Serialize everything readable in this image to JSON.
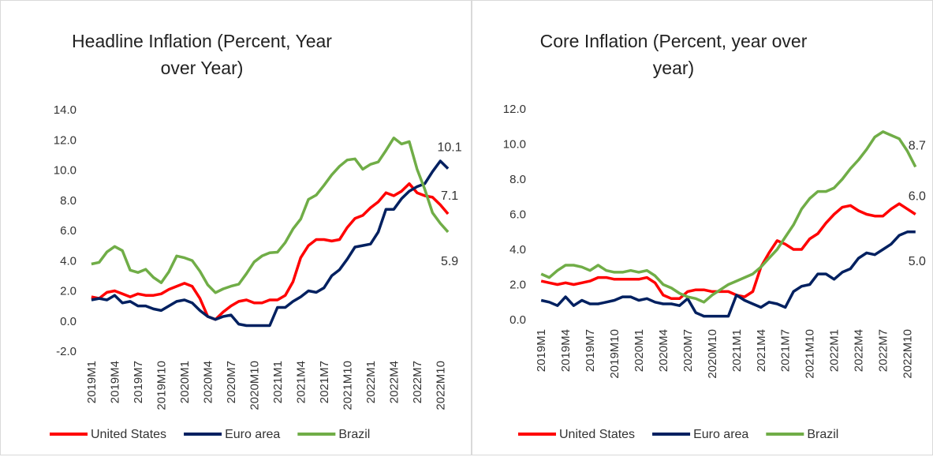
{
  "chart_data": [
    {
      "type": "line",
      "title": "Headline Inflation (Percent, Year over Year)",
      "categories": [
        "2019M1",
        null,
        null,
        "2019M4",
        null,
        null,
        "2019M7",
        null,
        null,
        "2019M10",
        null,
        null,
        "2020M1",
        null,
        null,
        "2020M4",
        null,
        null,
        "2020M7",
        null,
        null,
        "2020M10",
        null,
        null,
        "2021M1",
        null,
        null,
        "2021M4",
        null,
        null,
        "2021M7",
        null,
        null,
        "2021M10",
        null,
        null,
        "2022M1",
        null,
        null,
        "2022M4",
        null,
        null,
        "2022M7",
        null,
        null,
        "2022M10",
        null
      ],
      "ylim": [
        -2,
        14
      ],
      "yticks": [
        {
          "value": -2,
          "label": "-2.0"
        },
        {
          "value": 0,
          "label": "0.0"
        },
        {
          "value": 2,
          "label": "2.0"
        },
        {
          "value": 4,
          "label": "4.0"
        },
        {
          "value": 6,
          "label": "6.0"
        },
        {
          "value": 8,
          "label": "8.0"
        },
        {
          "value": 10,
          "label": "10.0"
        },
        {
          "value": 12,
          "label": "12.0"
        },
        {
          "value": 14,
          "label": "14.0"
        }
      ],
      "series": [
        {
          "name": "United States",
          "color": "#ff0000",
          "end_label": "7.1",
          "values": [
            1.6,
            1.5,
            1.9,
            2.0,
            1.8,
            1.6,
            1.8,
            1.7,
            1.7,
            1.8,
            2.1,
            2.3,
            2.5,
            2.3,
            1.5,
            0.3,
            0.1,
            0.6,
            1.0,
            1.3,
            1.4,
            1.2,
            1.2,
            1.4,
            1.4,
            1.7,
            2.6,
            4.2,
            5.0,
            5.4,
            5.4,
            5.3,
            5.4,
            6.2,
            6.8,
            7.0,
            7.5,
            7.9,
            8.5,
            8.3,
            8.6,
            9.1,
            8.5,
            8.3,
            8.2,
            7.7,
            7.1
          ]
        },
        {
          "name": "Euro area",
          "color": "#002060",
          "end_label": "10.1",
          "values": [
            1.4,
            1.5,
            1.4,
            1.7,
            1.2,
            1.3,
            1.0,
            1.0,
            0.8,
            0.7,
            1.0,
            1.3,
            1.4,
            1.2,
            0.7,
            0.3,
            0.1,
            0.3,
            0.4,
            -0.2,
            -0.3,
            -0.3,
            -0.3,
            -0.3,
            0.9,
            0.9,
            1.3,
            1.6,
            2.0,
            1.9,
            2.2,
            3.0,
            3.4,
            4.1,
            4.9,
            5.0,
            5.1,
            5.9,
            7.4,
            7.4,
            8.1,
            8.6,
            8.9,
            9.1,
            9.9,
            10.6,
            10.1
          ]
        },
        {
          "name": "Brazil",
          "color": "#70ad47",
          "end_label": "5.9",
          "values": [
            3.78,
            3.89,
            4.58,
            4.94,
            4.66,
            3.37,
            3.22,
            3.43,
            2.89,
            2.54,
            3.27,
            4.31,
            4.19,
            4.01,
            3.3,
            2.4,
            1.88,
            2.13,
            2.31,
            2.44,
            3.14,
            3.92,
            4.31,
            4.52,
            4.56,
            5.2,
            6.1,
            6.76,
            8.06,
            8.35,
            8.99,
            9.68,
            10.25,
            10.67,
            10.74,
            10.06,
            10.38,
            10.54,
            11.3,
            12.13,
            11.73,
            11.89,
            10.07,
            8.73,
            7.17,
            6.47,
            5.9
          ]
        }
      ]
    },
    {
      "type": "line",
      "title": "Core Inflation (Percent, year over year)",
      "categories": [
        "2019M1",
        null,
        null,
        "2019M4",
        null,
        null,
        "2019M7",
        null,
        null,
        "2019M10",
        null,
        null,
        "2020M1",
        null,
        null,
        "2020M4",
        null,
        null,
        "2020M7",
        null,
        null,
        "2020M10",
        null,
        null,
        "2021M1",
        null,
        null,
        "2021M4",
        null,
        null,
        "2021M7",
        null,
        null,
        "2021M10",
        null,
        null,
        "2022M1",
        null,
        null,
        "2022M4",
        null,
        null,
        "2022M7",
        null,
        null,
        "2022M10",
        null
      ],
      "ylim": [
        0,
        12
      ],
      "yticks": [
        {
          "value": 0,
          "label": "0.0"
        },
        {
          "value": 2,
          "label": "2.0"
        },
        {
          "value": 4,
          "label": "4.0"
        },
        {
          "value": 6,
          "label": "6.0"
        },
        {
          "value": 8,
          "label": "8.0"
        },
        {
          "value": 10,
          "label": "10.0"
        },
        {
          "value": 12,
          "label": "12.0"
        }
      ],
      "series": [
        {
          "name": "United States",
          "color": "#ff0000",
          "end_label": "6.0",
          "values": [
            2.2,
            2.1,
            2.0,
            2.1,
            2.0,
            2.1,
            2.2,
            2.4,
            2.4,
            2.3,
            2.3,
            2.3,
            2.3,
            2.4,
            2.1,
            1.4,
            1.2,
            1.2,
            1.6,
            1.7,
            1.7,
            1.6,
            1.6,
            1.6,
            1.4,
            1.3,
            1.6,
            3.0,
            3.8,
            4.5,
            4.3,
            4.0,
            4.0,
            4.6,
            4.9,
            5.5,
            6.0,
            6.4,
            6.5,
            6.2,
            6.0,
            5.9,
            5.9,
            6.3,
            6.6,
            6.3,
            6.0
          ]
        },
        {
          "name": "Euro area",
          "color": "#002060",
          "end_label": "5.0",
          "values": [
            1.1,
            1.0,
            0.8,
            1.3,
            0.8,
            1.1,
            0.9,
            0.9,
            1.0,
            1.1,
            1.3,
            1.3,
            1.1,
            1.2,
            1.0,
            0.9,
            0.9,
            0.8,
            1.2,
            0.4,
            0.2,
            0.2,
            0.2,
            0.2,
            1.4,
            1.1,
            0.9,
            0.7,
            1.0,
            0.9,
            0.7,
            1.6,
            1.9,
            2.0,
            2.6,
            2.6,
            2.3,
            2.7,
            2.9,
            3.5,
            3.8,
            3.7,
            4.0,
            4.3,
            4.8,
            5.0,
            5.0
          ]
        },
        {
          "name": "Brazil",
          "color": "#70ad47",
          "end_label": "8.7",
          "values": [
            2.6,
            2.4,
            2.8,
            3.1,
            3.1,
            3.0,
            2.8,
            3.1,
            2.8,
            2.7,
            2.7,
            2.8,
            2.7,
            2.8,
            2.5,
            2.0,
            1.8,
            1.5,
            1.3,
            1.2,
            1.0,
            1.4,
            1.7,
            2.0,
            2.2,
            2.4,
            2.6,
            3.0,
            3.5,
            4.0,
            4.7,
            5.4,
            6.3,
            6.9,
            7.3,
            7.3,
            7.5,
            8.0,
            8.6,
            9.1,
            9.7,
            10.4,
            10.7,
            10.5,
            10.3,
            9.6,
            8.7
          ]
        }
      ]
    }
  ]
}
